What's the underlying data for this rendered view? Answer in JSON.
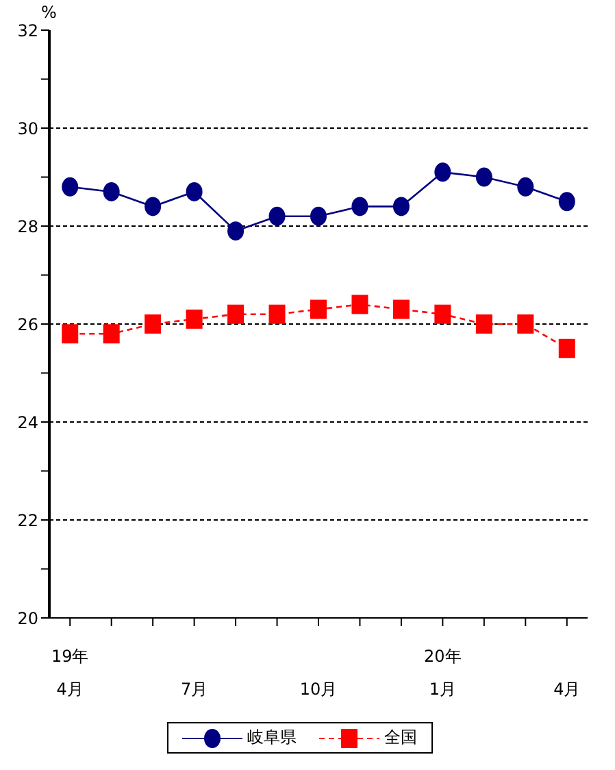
{
  "chart_data": {
    "type": "line",
    "ylabel": "%",
    "categories": [
      "19年\n4月",
      null,
      null,
      "7月",
      null,
      null,
      "10月",
      null,
      null,
      "20年\n1月",
      null,
      null,
      "4月"
    ],
    "series": [
      {
        "name": "岐阜県",
        "color": "#000080",
        "marker": "circle",
        "line_style": "solid",
        "values": [
          28.8,
          28.7,
          28.4,
          28.7,
          27.9,
          28.2,
          28.2,
          28.4,
          28.4,
          29.1,
          29.0,
          28.8,
          28.5
        ]
      },
      {
        "name": "全国",
        "color": "#ff0000",
        "marker": "square",
        "line_style": "dashed",
        "values": [
          25.8,
          25.8,
          26.0,
          26.1,
          26.2,
          26.2,
          26.3,
          26.4,
          26.3,
          26.2,
          26.0,
          26.0,
          25.5
        ]
      }
    ],
    "ylim": [
      20,
      32
    ],
    "yticks": [
      20,
      {
        "value": 21,
        "label": null
      },
      22,
      {
        "value": 23,
        "label": null
      },
      24,
      {
        "value": 25,
        "label": null
      },
      26,
      {
        "value": 27,
        "label": null
      },
      28,
      {
        "value": 29,
        "label": null
      },
      30,
      {
        "value": 31,
        "label": null
      },
      32
    ],
    "grid": "y",
    "legend": "bottom"
  }
}
